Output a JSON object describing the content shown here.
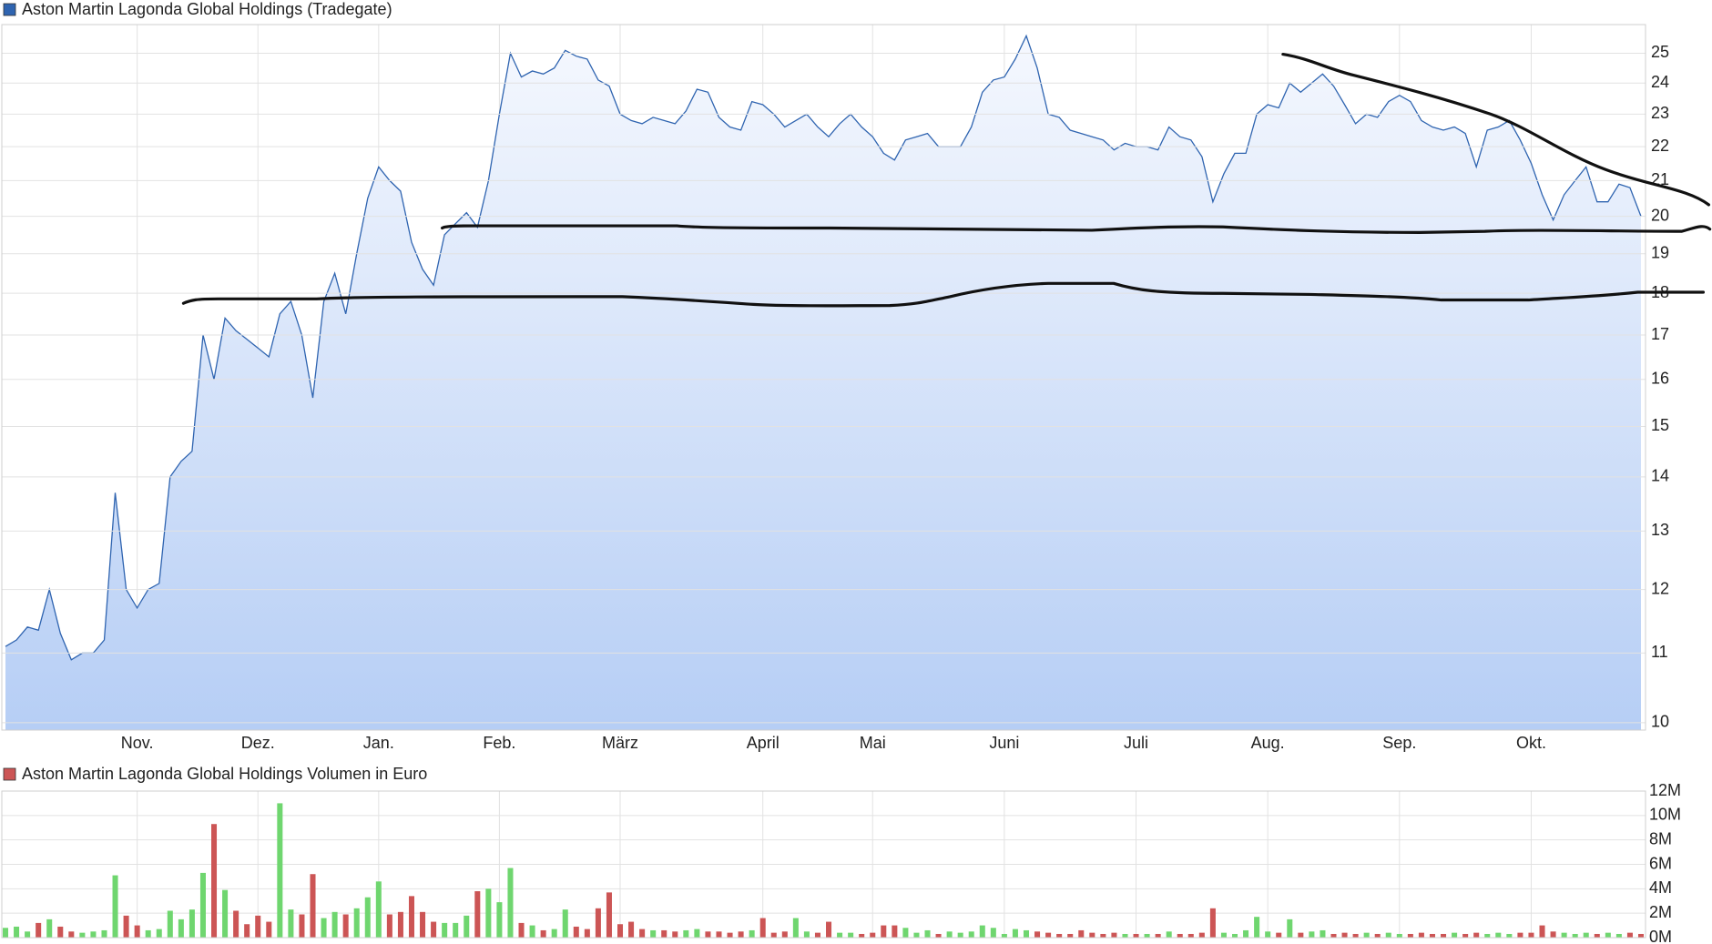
{
  "chart_data": [
    {
      "type": "area",
      "categories": [
        null,
        null,
        null,
        null,
        null,
        null,
        null,
        null,
        null,
        null,
        null,
        null,
        "Nov.",
        null,
        null,
        null,
        null,
        null,
        null,
        null,
        null,
        null,
        null,
        "Dez.",
        null,
        null,
        null,
        null,
        null,
        null,
        null,
        null,
        null,
        null,
        "Jan.",
        null,
        null,
        null,
        null,
        null,
        null,
        null,
        null,
        null,
        null,
        "Feb.",
        null,
        null,
        null,
        null,
        null,
        null,
        null,
        null,
        null,
        null,
        "März",
        null,
        null,
        null,
        null,
        null,
        null,
        null,
        null,
        null,
        null,
        null,
        null,
        "April",
        null,
        null,
        null,
        null,
        null,
        null,
        null,
        null,
        null,
        "Mai",
        null,
        null,
        null,
        null,
        null,
        null,
        null,
        null,
        null,
        null,
        null,
        "Juni",
        null,
        null,
        null,
        null,
        null,
        null,
        null,
        null,
        null,
        null,
        null,
        "Juli",
        null,
        null,
        null,
        null,
        null,
        null,
        null,
        null,
        null,
        null,
        null,
        "Aug.",
        null,
        null,
        null,
        null,
        null,
        null,
        null,
        null,
        null,
        null,
        null,
        "Sep.",
        null,
        null,
        null,
        null,
        null,
        null,
        null,
        null,
        null,
        null,
        null,
        "Okt.",
        null,
        null,
        null,
        null,
        null,
        null,
        null,
        null,
        null,
        null
      ],
      "series": [
        {
          "name": "Aston Martin Lagonda Global Holdings (Tradegate)",
          "color": "#2f64b0",
          "values": [
            11.1,
            11.2,
            11.4,
            11.35,
            12.0,
            11.3,
            10.9,
            11.0,
            11.0,
            11.2,
            13.7,
            12.0,
            11.7,
            12.0,
            12.1,
            14.0,
            14.3,
            14.5,
            17.0,
            16.0,
            17.4,
            17.1,
            16.9,
            16.7,
            16.5,
            17.5,
            17.8,
            17.0,
            15.6,
            17.8,
            18.5,
            17.5,
            19.0,
            20.5,
            21.4,
            21.0,
            20.7,
            19.3,
            18.6,
            18.2,
            19.5,
            19.8,
            20.1,
            19.7,
            21.0,
            23.0,
            25.0,
            24.2,
            24.4,
            24.3,
            24.5,
            25.1,
            24.9,
            24.8,
            24.1,
            23.9,
            23.0,
            22.8,
            22.7,
            22.9,
            22.8,
            22.7,
            23.1,
            23.8,
            23.7,
            22.9,
            22.6,
            22.5,
            23.4,
            23.3,
            23.0,
            22.6,
            22.8,
            23.0,
            22.6,
            22.3,
            22.7,
            23.0,
            22.6,
            22.3,
            21.8,
            21.6,
            22.2,
            22.3,
            22.4,
            22.0,
            22.0,
            22.0,
            22.6,
            23.7,
            24.1,
            24.2,
            24.8,
            25.6,
            24.5,
            23.0,
            22.9,
            22.5,
            22.4,
            22.3,
            22.2,
            21.9,
            22.1,
            22.0,
            22.0,
            21.9,
            22.6,
            22.3,
            22.2,
            21.7,
            20.4,
            21.2,
            21.8,
            21.8,
            23.0,
            23.3,
            23.2,
            24.0,
            23.7,
            24.0,
            24.3,
            23.9,
            23.3,
            22.7,
            23.0,
            22.9,
            23.4,
            23.6,
            23.4,
            22.8,
            22.6,
            22.5,
            22.6,
            22.4,
            21.4,
            22.5,
            22.6,
            22.8,
            22.2,
            21.5,
            20.6,
            19.9,
            20.6,
            21.0,
            21.4,
            20.4,
            20.4,
            20.9,
            20.8,
            20.0
          ]
        }
      ],
      "ylim": [
        9.9,
        26
      ],
      "yticks": [
        10,
        11,
        12,
        13,
        14,
        15,
        16,
        17,
        18,
        19,
        20,
        21,
        22,
        23,
        24,
        25
      ],
      "log_scale": true,
      "grid": true,
      "fill_top": "#f5f8fe",
      "fill_bottom": "#b6cef5"
    },
    {
      "type": "bar",
      "series": [
        {
          "name": "Aston Martin Lagonda Global Holdings Volumen in Euro",
          "color": "#cc5555",
          "values": [
            800000,
            900000,
            500000,
            1200000,
            1500000,
            900000,
            500000,
            400000,
            500000,
            600000,
            5100000,
            1800000,
            1000000,
            600000,
            700000,
            2200000,
            1500000,
            2300000,
            5300000,
            9300000,
            3900000,
            2200000,
            1100000,
            1800000,
            1300000,
            11000000,
            2300000,
            1900000,
            5200000,
            1600000,
            2100000,
            1900000,
            2400000,
            3300000,
            4600000,
            1900000,
            2100000,
            3400000,
            2100000,
            1300000,
            1200000,
            1200000,
            1800000,
            3800000,
            4000000,
            2900000,
            5700000,
            1200000,
            1000000,
            600000,
            700000,
            2300000,
            900000,
            700000,
            2400000,
            3700000,
            1100000,
            1300000,
            700000,
            600000,
            600000,
            500000,
            600000,
            700000,
            500000,
            500000,
            400000,
            500000,
            600000,
            1600000,
            400000,
            500000,
            1600000,
            500000,
            400000,
            1300000,
            400000,
            400000,
            300000,
            400000,
            1000000,
            1000000,
            800000,
            400000,
            600000,
            300000,
            500000,
            400000,
            500000,
            1000000,
            800000,
            300000,
            700000,
            600000,
            500000,
            400000,
            300000,
            300000,
            600000,
            400000,
            300000,
            400000,
            300000,
            300000,
            300000,
            300000,
            500000,
            300000,
            300000,
            400000,
            2400000,
            400000,
            300000,
            600000,
            1700000,
            500000,
            400000,
            1500000,
            400000,
            500000,
            600000,
            300000,
            400000,
            300000,
            400000,
            300000,
            400000,
            300000,
            300000,
            400000,
            300000,
            300000,
            400000,
            300000,
            400000,
            300000,
            400000,
            300000,
            400000,
            400000,
            1000000,
            500000,
            400000,
            300000,
            400000,
            300000,
            400000,
            300000,
            400000,
            300000
          ]
        }
      ],
      "up_color": "#6fd66f",
      "down_color": "#cc5555",
      "ylim": [
        0,
        12000000
      ],
      "yticks": [
        {
          "value": 0,
          "label": "0M"
        },
        {
          "value": 2000000,
          "label": "2M"
        },
        {
          "value": 4000000,
          "label": "4M"
        },
        {
          "value": 6000000,
          "label": "6M"
        },
        {
          "value": 8000000,
          "label": "8M"
        },
        {
          "value": 10000000,
          "label": "10M"
        },
        {
          "value": 12000000,
          "label": "12M"
        }
      ],
      "grid": true
    }
  ]
}
